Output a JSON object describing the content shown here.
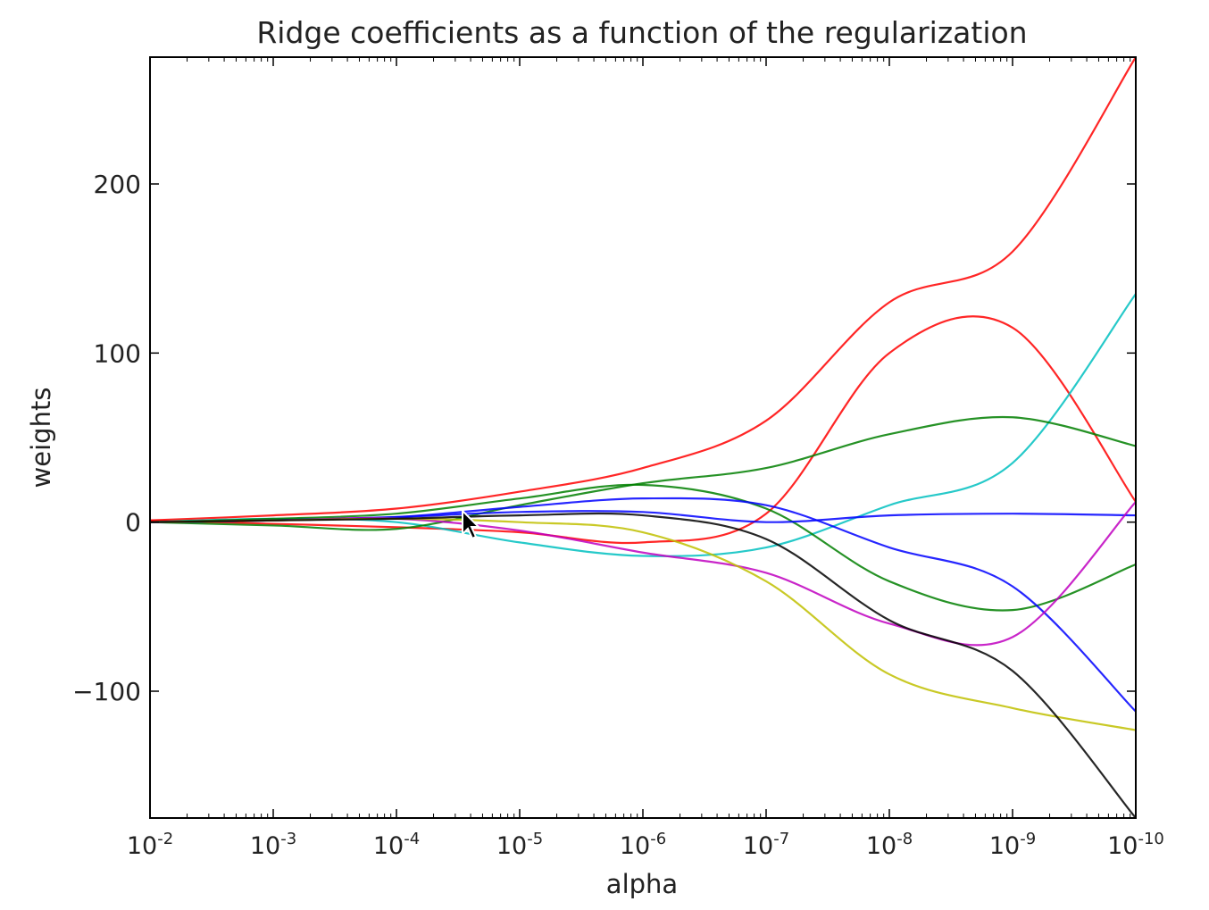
{
  "chart_data": {
    "type": "line",
    "title": "Ridge coefficients as a function of the regularization",
    "xlabel": "alpha",
    "ylabel": "weights",
    "x_scale": "log",
    "x_reversed": true,
    "xlim": [
      0.01,
      1e-10
    ],
    "ylim": [
      -175,
      275
    ],
    "x_ticks": [
      {
        "value": 0.01,
        "base": "10",
        "exp": "-2"
      },
      {
        "value": 0.001,
        "base": "10",
        "exp": "-3"
      },
      {
        "value": 0.0001,
        "base": "10",
        "exp": "-4"
      },
      {
        "value": 1e-05,
        "base": "10",
        "exp": "-5"
      },
      {
        "value": 1e-06,
        "base": "10",
        "exp": "-6"
      },
      {
        "value": 1e-07,
        "base": "10",
        "exp": "-7"
      },
      {
        "value": 1e-08,
        "base": "10",
        "exp": "-8"
      },
      {
        "value": 1e-09,
        "base": "10",
        "exp": "-9"
      },
      {
        "value": 1e-10,
        "base": "10",
        "exp": "-10"
      }
    ],
    "y_ticks": [
      {
        "value": 200,
        "label": "200"
      },
      {
        "value": 100,
        "label": "100"
      },
      {
        "value": 0,
        "label": "0"
      },
      {
        "value": -100,
        "label": "−100"
      }
    ],
    "grid": false,
    "x": [
      0.01,
      0.001,
      0.0001,
      1e-05,
      1e-06,
      1e-07,
      1e-08,
      1e-09,
      1e-10
    ],
    "series": [
      {
        "color": "#ff0000",
        "values": [
          1,
          4,
          8,
          18,
          32,
          60,
          130,
          160,
          275
        ]
      },
      {
        "color": "#ff0000",
        "values": [
          1,
          -1,
          -3,
          -6,
          -12,
          5,
          100,
          115,
          12
        ]
      },
      {
        "color": "#00bfbf",
        "values": [
          0,
          2,
          0,
          -12,
          -20,
          -15,
          10,
          35,
          135
        ]
      },
      {
        "color": "#007f00",
        "values": [
          0,
          -2,
          -4,
          10,
          23,
          32,
          52,
          62,
          45
        ]
      },
      {
        "color": "#007f00",
        "values": [
          0,
          2,
          5,
          14,
          22,
          8,
          -35,
          -52,
          -25
        ]
      },
      {
        "color": "#0000ff",
        "values": [
          0,
          1,
          3,
          6,
          6,
          0,
          4,
          5,
          4
        ]
      },
      {
        "color": "#0000ff",
        "values": [
          0,
          1,
          3,
          9,
          14,
          10,
          -15,
          -38,
          -112
        ]
      },
      {
        "color": "#bf00bf",
        "values": [
          0,
          1,
          2,
          -5,
          -18,
          -30,
          -60,
          -68,
          12
        ]
      },
      {
        "color": "#bfbf00",
        "values": [
          0,
          1,
          2,
          0,
          -6,
          -35,
          -90,
          -110,
          -123
        ]
      },
      {
        "color": "#000000",
        "values": [
          0,
          1,
          2,
          4,
          4,
          -10,
          -58,
          -88,
          -175
        ]
      }
    ]
  }
}
